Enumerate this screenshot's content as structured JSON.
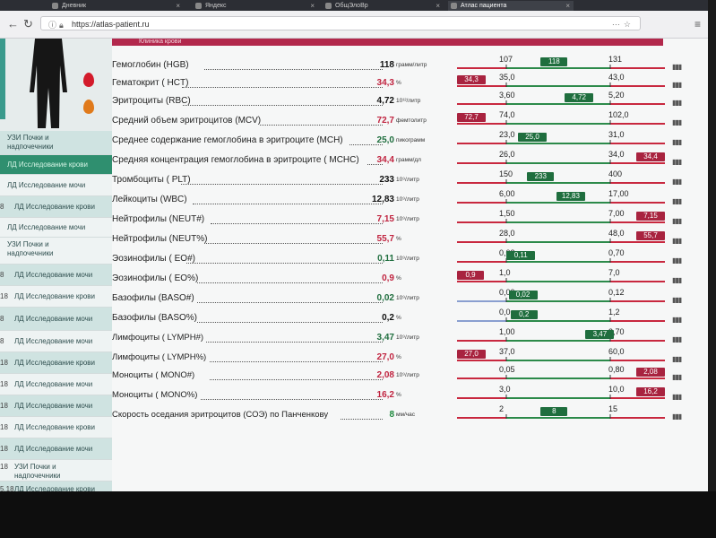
{
  "browser": {
    "tabs": [
      {
        "title": "Дневник",
        "active": false
      },
      {
        "title": "Яндекс",
        "active": false
      },
      {
        "title": "ОбщЭлоВр",
        "active": false
      },
      {
        "title": "Атлас пациента",
        "active": true
      }
    ],
    "url": "https://atlas-patient.ru"
  },
  "sidebar": {
    "items": [
      {
        "num": "",
        "label": "УЗИ Почки и",
        "label2": "надпочечники",
        "style": "teal"
      },
      {
        "num": "",
        "label": "ЛД Исследование крови",
        "label2": "",
        "style": "sel"
      },
      {
        "num": "",
        "label": "ЛД Исследование мочи",
        "label2": "",
        "style": "light"
      },
      {
        "num": "8",
        "label": "ЛД Исследование крови",
        "label2": "",
        "style": "teal"
      },
      {
        "num": "",
        "label": "ЛД Исследование мочи",
        "label2": "",
        "style": "light"
      },
      {
        "num": "",
        "label": "УЗИ Почки и",
        "label2": "надпочечники",
        "style": "light"
      },
      {
        "num": "8",
        "label": "ЛД Исследование мочи",
        "label2": "",
        "style": "teal"
      },
      {
        "num": "18",
        "label": "ЛД Исследование крови",
        "label2": "",
        "style": "light"
      },
      {
        "num": "8",
        "label": "ЛД Исследование мочи",
        "label2": "",
        "style": "teal"
      },
      {
        "num": "8",
        "label": "ЛД Исследование мочи",
        "label2": "",
        "style": "light"
      },
      {
        "num": "18",
        "label": "ЛД Исследование крови",
        "label2": "",
        "style": "teal"
      },
      {
        "num": "18",
        "label": "ЛД Исследование мочи",
        "label2": "",
        "style": "light"
      },
      {
        "num": "18",
        "label": "ЛД Исследование мочи",
        "label2": "",
        "style": "teal"
      },
      {
        "num": "18",
        "label": "ЛД Исследование крови",
        "label2": "",
        "style": "light"
      },
      {
        "num": "18",
        "label": "ЛД Исследование мочи",
        "label2": "",
        "style": "teal"
      },
      {
        "num": "18",
        "label": "УЗИ Почки и",
        "label2": "надпочечники",
        "style": "light"
      },
      {
        "num": "5.18",
        "label": "ЛД Исследование крови",
        "label2": "",
        "style": "teal"
      }
    ]
  },
  "section_title": "Клиника крови",
  "colors": {
    "ok": "#1f6e3e",
    "bad": "#a8233f",
    "normal_line": "#2c8a4a",
    "alert_line": "#c8283f",
    "low_line": "#8a9fd0"
  },
  "rows": [
    {
      "name": "Гемоглобин (HGB)",
      "value": "118",
      "unit": "грамм/литр",
      "status": "ok",
      "min": "107",
      "max": "131",
      "badge": "118",
      "pos": 0.46
    },
    {
      "name": "Гематокрит ( HCT)",
      "value": "34,3",
      "unit": "%",
      "status": "bad",
      "min": "35,0",
      "max": "43,0",
      "badge": "34,3",
      "pos": -0.08
    },
    {
      "name": "Эритроциты (RBC)",
      "value": "4,72",
      "unit": "10¹²/литр",
      "status": "ok",
      "min": "3,60",
      "max": "5,20",
      "badge": "4,72",
      "pos": 0.7
    },
    {
      "name": "Средний объем эритроцитов (MCV)",
      "value": "72,7",
      "unit": "фемтолитр",
      "status": "bad",
      "min": "74,0",
      "max": "102,0",
      "badge": "72,7",
      "pos": -0.1
    },
    {
      "name": "Среднее содержание гемоглобина в эритроците (MCH)",
      "value": "25,0",
      "unit": "пикограмм",
      "status": "ok",
      "min": "23,0",
      "max": "31,0",
      "badge": "25,0",
      "pos": 0.25
    },
    {
      "name": "Средняя концентрация гемоглобина в эритроците ( MCHC)",
      "value": "34,4",
      "unit": "грамм/дл",
      "status": "bad",
      "min": "26,0",
      "max": "34,0",
      "badge": "34,4",
      "pos": 1.1
    },
    {
      "name": "Тромбоциты ( PLT)",
      "value": "233",
      "unit": "10⁹/литр",
      "status": "ok",
      "min": "150",
      "max": "400",
      "badge": "233",
      "pos": 0.33
    },
    {
      "name": "Лейкоциты (WBC)",
      "value": "12,83",
      "unit": "10⁹/литр",
      "status": "ok",
      "min": "6,00",
      "max": "17,00",
      "badge": "12,83",
      "pos": 0.62
    },
    {
      "name": "Нейтрофилы (NEUT#)",
      "value": "7,15",
      "unit": "10⁹/литр",
      "status": "bad",
      "min": "1,50",
      "max": "7,00",
      "badge": "7,15",
      "pos": 1.05
    },
    {
      "name": "Нейтрофилы (NEUT%)",
      "value": "55,7",
      "unit": "%",
      "status": "bad",
      "min": "28,0",
      "max": "48,0",
      "badge": "55,7",
      "pos": 1.1
    },
    {
      "name": "Эозинофилы ( EO#)",
      "value": "0,11",
      "unit": "10⁹/литр",
      "status": "ok",
      "min": "0,02",
      "max": "0,70",
      "badge": "0,11",
      "pos": 0.14
    },
    {
      "name": "Эозинофилы ( EO%)",
      "value": "0,9",
      "unit": "%",
      "status": "bad",
      "min": "1,0",
      "max": "7,0",
      "badge": "0,9",
      "pos": -0.1
    },
    {
      "name": "Базофилы (BASO#)",
      "value": "0,02",
      "unit": "10⁹/литр",
      "status": "ok",
      "min": "0,00",
      "max": "0,12",
      "badge": "0,02",
      "pos": 0.16
    },
    {
      "name": "Базофилы (BASO%)",
      "value": "0,2",
      "unit": "%",
      "status": "ok",
      "min": "0,0",
      "max": "1,2",
      "badge": "0,2",
      "pos": 0.17
    },
    {
      "name": "Лимфоциты ( LYMPH#)",
      "value": "3,47",
      "unit": "10⁹/литр",
      "status": "ok",
      "min": "1,00",
      "max": "3,70",
      "badge": "3,47",
      "pos": 0.9
    },
    {
      "name": "Лимфоциты ( LYMPH%)",
      "value": "27,0",
      "unit": "%",
      "status": "bad",
      "min": "37,0",
      "max": "60,0",
      "badge": "27,0",
      "pos": -0.1
    },
    {
      "name": "Лимфоциты ( LYMPH%)",
      "value": "",
      "unit": "",
      "status": "none",
      "min": "",
      "max": "",
      "badge": "",
      "pos": 0,
      "skip": true
    },
    {
      "name": "Моноциты ( MONO#)",
      "value": "2,08",
      "unit": "10⁹/литр",
      "status": "bad",
      "min": "0,05",
      "max": "0,80",
      "badge": "2,08",
      "pos": 1.1
    },
    {
      "name": "Моноциты ( MONO%)",
      "value": "16,2",
      "unit": "%",
      "status": "bad",
      "min": "3,0",
      "max": "10,0",
      "badge": "16,2",
      "pos": 1.1
    },
    {
      "name": "Скорость оседания эритроцитов (СОЭ) по Панченкову",
      "value": "8",
      "unit": "мм/час",
      "status": "ok",
      "min": "2",
      "max": "15",
      "badge": "8",
      "pos": 0.46
    }
  ]
}
